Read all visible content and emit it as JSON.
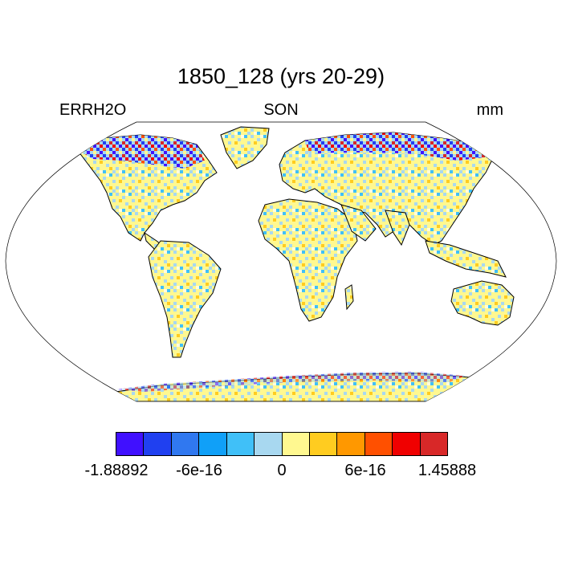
{
  "title": "1850_128 (yrs 20-29)",
  "left_label": "ERRH2O",
  "center_label": "SON",
  "right_label": "mm",
  "colorbar": {
    "colors": [
      "#4010ff",
      "#2040f0",
      "#3078f0",
      "#10a0f8",
      "#40c0f8",
      "#a8d8f0",
      "#fff890",
      "#ffcc20",
      "#ff9800",
      "#ff5000",
      "#f00000",
      "#d82828"
    ],
    "tick_labels": [
      "-1.88892",
      "-6e-16",
      "0",
      "6e-16",
      "1.45888"
    ]
  },
  "colors": {
    "ocean": "#ffffff",
    "land_dominant": [
      "#fff890",
      "#a8d8f0"
    ],
    "coastline": "#000000"
  }
}
